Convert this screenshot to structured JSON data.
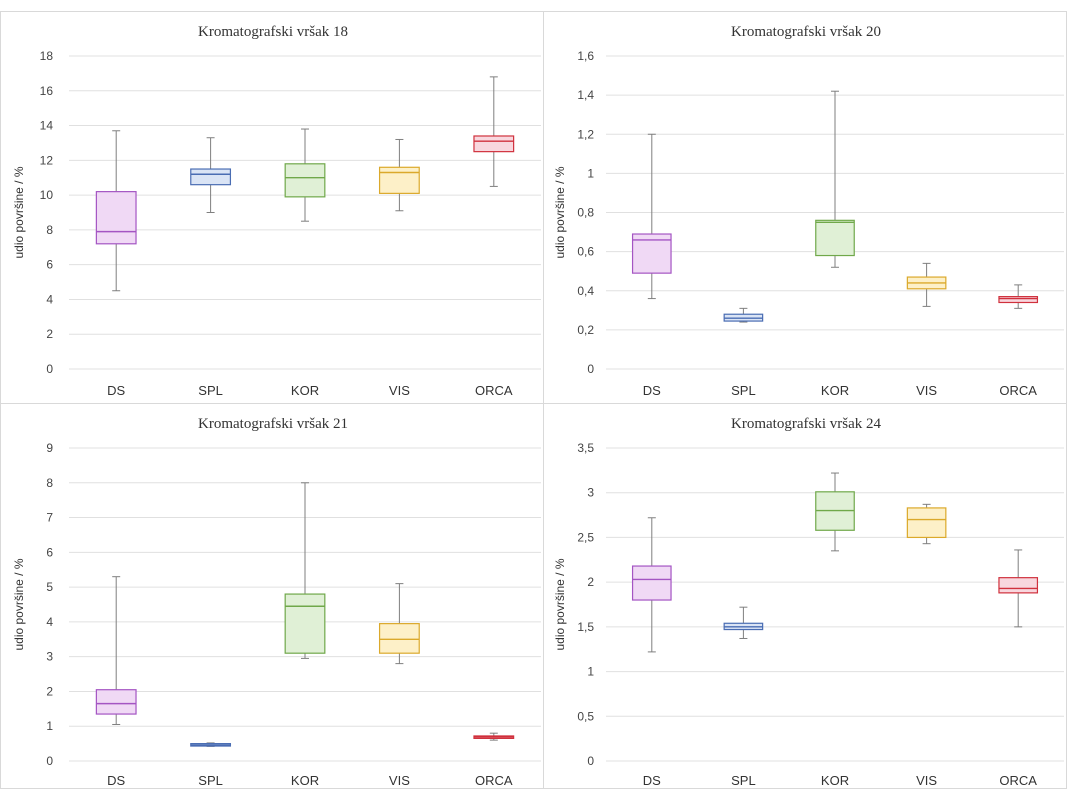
{
  "chart_data": [
    {
      "type": "box",
      "title": "Kromatografski vršak 18",
      "ylabel": "udio površine / %",
      "ylim": [
        0,
        18
      ],
      "yticks": [
        "0",
        "2",
        "4",
        "6",
        "8",
        "10",
        "12",
        "14",
        "16",
        "18"
      ],
      "ytick_values": [
        0,
        2,
        4,
        6,
        8,
        10,
        12,
        14,
        16,
        18
      ],
      "categories": [
        "DS",
        "SPL",
        "KOR",
        "VIS",
        "ORCA"
      ],
      "boxes": [
        {
          "min": 4.5,
          "q1": 7.2,
          "median": 7.9,
          "q3": 10.2,
          "max": 13.7
        },
        {
          "min": 9.0,
          "q1": 10.6,
          "median": 11.2,
          "q3": 11.5,
          "max": 13.3
        },
        {
          "min": 8.5,
          "q1": 9.9,
          "median": 11.0,
          "q3": 11.8,
          "max": 13.8
        },
        {
          "min": 9.1,
          "q1": 10.1,
          "median": 11.3,
          "q3": 11.6,
          "max": 13.2
        },
        {
          "min": 10.5,
          "q1": 12.5,
          "median": 13.1,
          "q3": 13.4,
          "max": 16.8
        }
      ]
    },
    {
      "type": "box",
      "title": "Kromatografski vršak 20",
      "ylabel": "udio površine / %",
      "ylim": [
        0,
        1.6
      ],
      "yticks": [
        "0",
        "0,2",
        "0,4",
        "0,6",
        "0,8",
        "1",
        "1,2",
        "1,4",
        "1,6"
      ],
      "ytick_values": [
        0,
        0.2,
        0.4,
        0.6,
        0.8,
        1.0,
        1.2,
        1.4,
        1.6
      ],
      "categories": [
        "DS",
        "SPL",
        "KOR",
        "VIS",
        "ORCA"
      ],
      "boxes": [
        {
          "min": 0.36,
          "q1": 0.49,
          "median": 0.66,
          "q3": 0.69,
          "max": 1.2
        },
        {
          "min": 0.24,
          "q1": 0.245,
          "median": 0.26,
          "q3": 0.28,
          "max": 0.31
        },
        {
          "min": 0.52,
          "q1": 0.58,
          "median": 0.75,
          "q3": 0.76,
          "max": 1.42
        },
        {
          "min": 0.32,
          "q1": 0.41,
          "median": 0.44,
          "q3": 0.47,
          "max": 0.54
        },
        {
          "min": 0.31,
          "q1": 0.34,
          "median": 0.36,
          "q3": 0.37,
          "max": 0.43
        }
      ]
    },
    {
      "type": "box",
      "title": "Kromatografski vršak 21",
      "ylabel": "udio površine / %",
      "ylim": [
        0,
        9
      ],
      "yticks": [
        "0",
        "1",
        "2",
        "3",
        "4",
        "5",
        "6",
        "7",
        "8",
        "9"
      ],
      "ytick_values": [
        0,
        1,
        2,
        3,
        4,
        5,
        6,
        7,
        8,
        9
      ],
      "categories": [
        "DS",
        "SPL",
        "KOR",
        "VIS",
        "ORCA"
      ],
      "boxes": [
        {
          "min": 1.05,
          "q1": 1.35,
          "median": 1.65,
          "q3": 2.05,
          "max": 5.3
        },
        {
          "min": 0.42,
          "q1": 0.43,
          "median": 0.46,
          "q3": 0.5,
          "max": 0.52
        },
        {
          "min": 2.95,
          "q1": 3.1,
          "median": 4.45,
          "q3": 4.8,
          "max": 8.0
        },
        {
          "min": 2.8,
          "q1": 3.1,
          "median": 3.5,
          "q3": 3.95,
          "max": 5.1
        },
        {
          "min": 0.6,
          "q1": 0.65,
          "median": 0.69,
          "q3": 0.72,
          "max": 0.8
        }
      ]
    },
    {
      "type": "box",
      "title": "Kromatografski vršak 24",
      "ylabel": "udio površine / %",
      "ylim": [
        0,
        3.5
      ],
      "yticks": [
        "0",
        "0,5",
        "1",
        "1,5",
        "2",
        "2,5",
        "3",
        "3,5"
      ],
      "ytick_values": [
        0,
        0.5,
        1.0,
        1.5,
        2.0,
        2.5,
        3.0,
        3.5
      ],
      "categories": [
        "DS",
        "SPL",
        "KOR",
        "VIS",
        "ORCA"
      ],
      "boxes": [
        {
          "min": 1.22,
          "q1": 1.8,
          "median": 2.03,
          "q3": 2.18,
          "max": 2.72
        },
        {
          "min": 1.37,
          "q1": 1.47,
          "median": 1.5,
          "q3": 1.54,
          "max": 1.72
        },
        {
          "min": 2.35,
          "q1": 2.58,
          "median": 2.8,
          "q3": 3.01,
          "max": 3.22
        },
        {
          "min": 2.43,
          "q1": 2.5,
          "median": 2.7,
          "q3": 2.83,
          "max": 2.87
        },
        {
          "min": 1.5,
          "q1": 1.88,
          "median": 1.93,
          "q3": 2.05,
          "max": 2.36
        }
      ]
    }
  ],
  "colors": {
    "DS": {
      "fill": "#f0d9f5",
      "stroke": "#a455c3"
    },
    "SPL": {
      "fill": "#dae4f5",
      "stroke": "#4a6db3"
    },
    "KOR": {
      "fill": "#e0f0d6",
      "stroke": "#70a84a"
    },
    "VIS": {
      "fill": "#fdf0c8",
      "stroke": "#dba92b"
    },
    "ORCA": {
      "fill": "#f8d7de",
      "stroke": "#d0313d"
    }
  }
}
